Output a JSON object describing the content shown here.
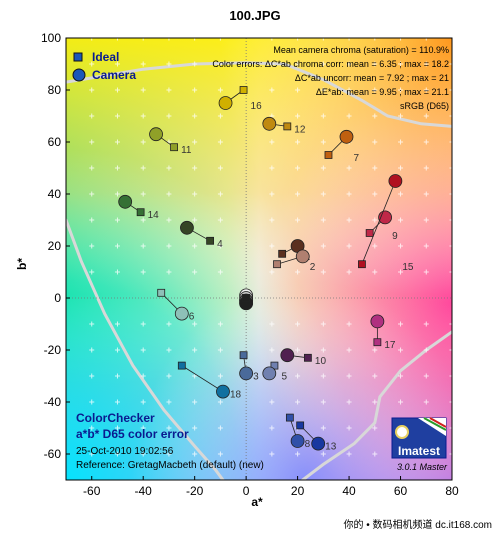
{
  "chart_data": {
    "type": "scatter",
    "title": "100.JPG",
    "xlabel": "a*",
    "ylabel": "b*",
    "xlim": [
      -70,
      80
    ],
    "ylim": [
      -70,
      100
    ],
    "x_ticks": [
      "-60",
      "-40",
      "-20",
      "0",
      "20",
      "40",
      "60",
      "80"
    ],
    "y_ticks": [
      "100",
      "80",
      "60",
      "40",
      "20",
      "0",
      "-20",
      "-40",
      "-60"
    ],
    "legend": {
      "position": "top-left",
      "items": [
        {
          "name": "Ideal",
          "marker": "square",
          "color": "#1a57b8"
        },
        {
          "name": "Camera",
          "marker": "circle",
          "color": "#1a57b8"
        }
      ]
    },
    "stats": [
      "Mean camera chroma (saturation) = 110.9%",
      "Color errors:  ΔC*ab chroma corr:  mean = 6.35 ;  max = 18.2",
      "ΔC*ab uncorr:  mean = 7.92 ;  max = 21",
      "ΔE*ab:  mean = 9.95 ;  max = 21.1",
      "sRGB (D65)"
    ],
    "patches": [
      {
        "id": "1",
        "ideal": [
          14,
          17
        ],
        "camera": [
          20,
          20
        ],
        "color": "#5a3020"
      },
      {
        "id": "2",
        "ideal": [
          12,
          13
        ],
        "camera": [
          22,
          16
        ],
        "color": "#b08070"
      },
      {
        "id": "3",
        "ideal": [
          -1,
          -22
        ],
        "camera": [
          0,
          -29
        ],
        "color": "#4a6a9a"
      },
      {
        "id": "4",
        "ideal": [
          -14,
          22
        ],
        "camera": [
          -23,
          27
        ],
        "color": "#354525"
      },
      {
        "id": "5",
        "ideal": [
          11,
          -26
        ],
        "camera": [
          9,
          -29
        ],
        "color": "#7080b0"
      },
      {
        "id": "6",
        "ideal": [
          -33,
          2
        ],
        "camera": [
          -25,
          -6
        ],
        "color": "#8ec0b8"
      },
      {
        "id": "7",
        "ideal": [
          32,
          55
        ],
        "camera": [
          39,
          62
        ],
        "color": "#c06010"
      },
      {
        "id": "8",
        "ideal": [
          17,
          -46
        ],
        "camera": [
          20,
          -55
        ],
        "color": "#3050a8"
      },
      {
        "id": "9",
        "ideal": [
          48,
          25
        ],
        "camera": [
          54,
          31
        ],
        "color": "#c02848"
      },
      {
        "id": "10",
        "ideal": [
          24,
          -23
        ],
        "camera": [
          16,
          -22
        ],
        "color": "#502050"
      },
      {
        "id": "11",
        "ideal": [
          -28,
          58
        ],
        "camera": [
          -35,
          63
        ],
        "color": "#90a028"
      },
      {
        "id": "12",
        "ideal": [
          16,
          66
        ],
        "camera": [
          9,
          67
        ],
        "color": "#c08a10"
      },
      {
        "id": "13",
        "ideal": [
          21,
          -49
        ],
        "camera": [
          28,
          -56
        ],
        "color": "#1838a0"
      },
      {
        "id": "14",
        "ideal": [
          -41,
          33
        ],
        "camera": [
          -47,
          37
        ],
        "color": "#357035"
      },
      {
        "id": "15",
        "ideal": [
          45,
          13
        ],
        "camera": [
          58,
          45
        ],
        "color": "#b01020"
      },
      {
        "id": "16",
        "ideal": [
          -1,
          80
        ],
        "camera": [
          -8,
          75
        ],
        "color": "#d0b000"
      },
      {
        "id": "17",
        "ideal": [
          51,
          -17
        ],
        "camera": [
          51,
          -9
        ],
        "color": "#b03080"
      },
      {
        "id": "18",
        "ideal": [
          -25,
          -26
        ],
        "camera": [
          -9,
          -36
        ],
        "color": "#1070a0"
      },
      {
        "id": "19",
        "ideal": [
          0,
          0
        ],
        "camera": [
          0,
          1
        ],
        "color": "#f0f0f0"
      },
      {
        "id": "20",
        "ideal": [
          0,
          0
        ],
        "camera": [
          0,
          0
        ],
        "color": "#c0c0c0"
      },
      {
        "id": "21",
        "ideal": [
          0,
          0
        ],
        "camera": [
          0,
          -1
        ],
        "color": "#909090"
      },
      {
        "id": "22",
        "ideal": [
          0,
          0
        ],
        "camera": [
          0,
          -1
        ],
        "color": "#606060"
      },
      {
        "id": "23",
        "ideal": [
          0,
          0
        ],
        "camera": [
          0,
          -2
        ],
        "color": "#404040"
      },
      {
        "id": "24",
        "ideal": [
          0,
          0
        ],
        "camera": [
          0,
          -2
        ],
        "color": "#202020"
      }
    ],
    "boundary_curves": [
      [
        [
          -70,
          83
        ],
        [
          -58,
          85
        ],
        [
          -40,
          88
        ],
        [
          -20,
          90
        ],
        [
          0,
          90.5
        ],
        [
          15,
          90
        ],
        [
          30,
          84
        ],
        [
          45,
          76
        ],
        [
          55,
          70
        ],
        [
          68,
          67
        ],
        [
          80,
          66
        ]
      ],
      [
        [
          -70,
          30
        ],
        [
          -64,
          14
        ],
        [
          -55,
          -6
        ],
        [
          -44,
          -26
        ],
        [
          -32,
          -43
        ],
        [
          -20,
          -57
        ],
        [
          -12,
          -66
        ],
        [
          -9,
          -70
        ]
      ],
      [
        [
          22,
          -70
        ],
        [
          30,
          -64
        ],
        [
          42,
          -56
        ],
        [
          50,
          -48
        ],
        [
          52,
          -38
        ],
        [
          60,
          -28
        ],
        [
          70,
          -20
        ],
        [
          80,
          -13
        ]
      ]
    ],
    "footer": {
      "title1": "ColorChecker",
      "title2": "a*b* D65 color error",
      "date": "25-Oct-2010 19:02:56",
      "reference": "Reference: GretagMacbeth (default) (new)"
    },
    "logo": {
      "text": "Imatest",
      "version": "3.0.1   Master"
    }
  },
  "watermark": {
    "text": "你的 • 数码相机频道  dc.it168.com"
  }
}
